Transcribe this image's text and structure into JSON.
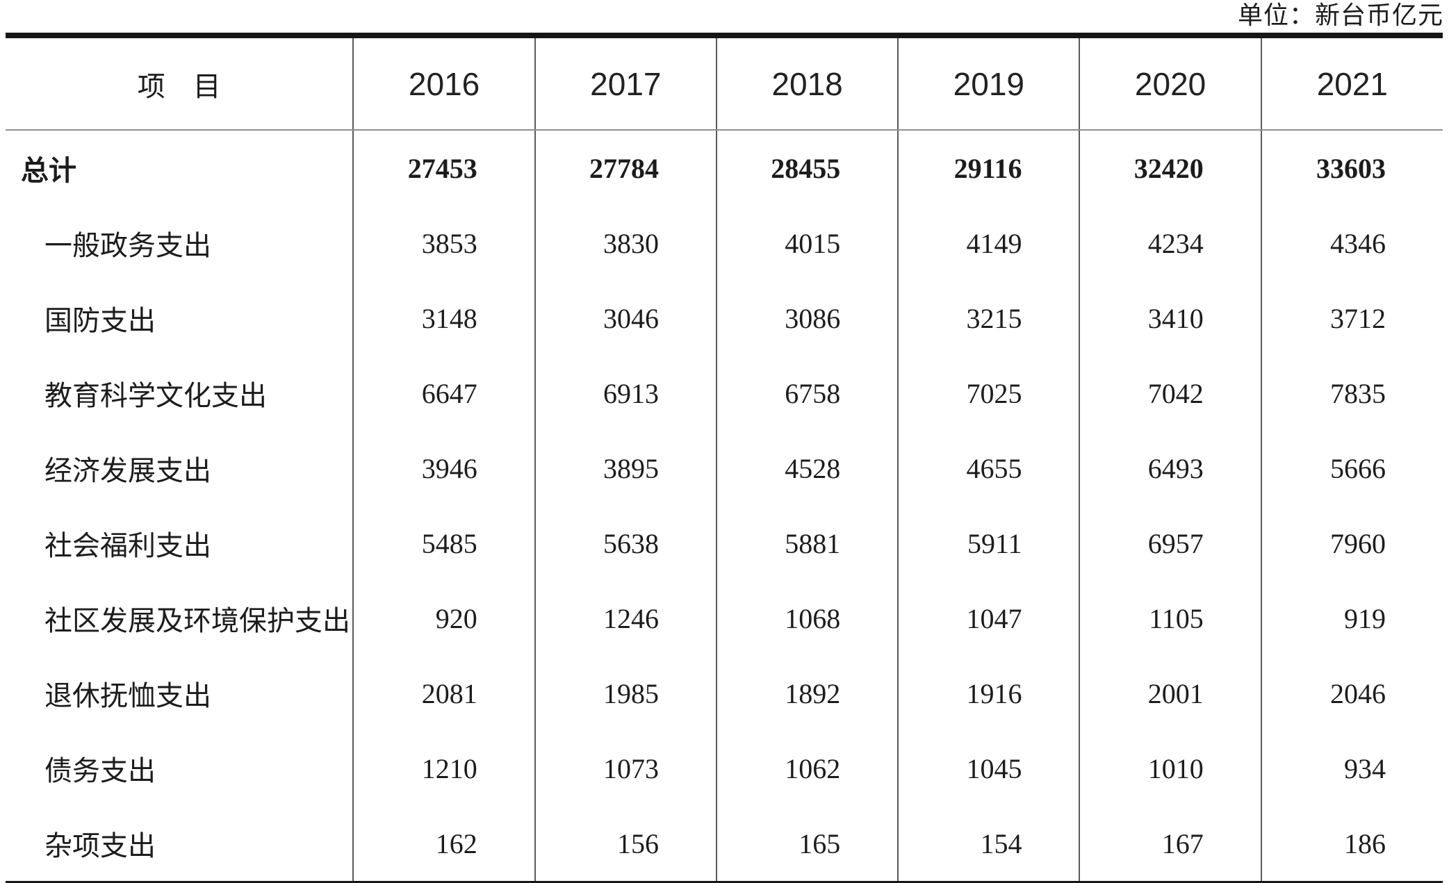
{
  "unit_label": "单位：新台币亿元",
  "table": {
    "item_header": "项　目",
    "years": [
      "2016",
      "2017",
      "2018",
      "2019",
      "2020",
      "2021"
    ],
    "rows": [
      {
        "label": "总计",
        "values": [
          "27453",
          "27784",
          "28455",
          "29116",
          "32420",
          "33603"
        ]
      },
      {
        "label": "一般政务支出",
        "values": [
          "3853",
          "3830",
          "4015",
          "4149",
          "4234",
          "4346"
        ]
      },
      {
        "label": "国防支出",
        "values": [
          "3148",
          "3046",
          "3086",
          "3215",
          "3410",
          "3712"
        ]
      },
      {
        "label": "教育科学文化支出",
        "values": [
          "6647",
          "6913",
          "6758",
          "7025",
          "7042",
          "7835"
        ]
      },
      {
        "label": "经济发展支出",
        "values": [
          "3946",
          "3895",
          "4528",
          "4655",
          "6493",
          "5666"
        ]
      },
      {
        "label": "社会福利支出",
        "values": [
          "5485",
          "5638",
          "5881",
          "5911",
          "6957",
          "7960"
        ]
      },
      {
        "label": "社区发展及环境保护支出",
        "values": [
          "920",
          "1246",
          "1068",
          "1047",
          "1105",
          "919"
        ]
      },
      {
        "label": "退休抚恤支出",
        "values": [
          "2081",
          "1985",
          "1892",
          "1916",
          "2001",
          "2046"
        ]
      },
      {
        "label": "债务支出",
        "values": [
          "1210",
          "1073",
          "1062",
          "1045",
          "1010",
          "934"
        ]
      },
      {
        "label": "杂项支出",
        "values": [
          "162",
          "156",
          "165",
          "154",
          "167",
          "186"
        ]
      }
    ]
  }
}
